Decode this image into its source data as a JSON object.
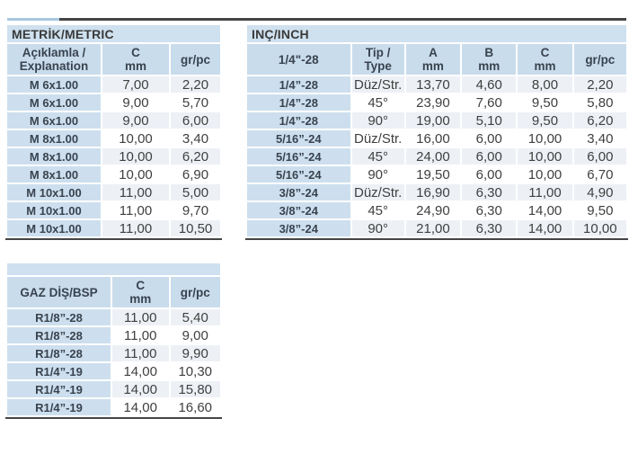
{
  "colors": {
    "title": "#cfe1ef",
    "head": "#c9dcec",
    "label": "#cddfee",
    "alt": "#edf1f6",
    "dark": "#454545",
    "ruleblue": "#a9c6e0",
    "text": "#3f3f3f",
    "headtext": "#39434f"
  },
  "tables": {
    "metric": {
      "title": "METRİK/METRIC",
      "headers": [
        [
          "Açıklamla /",
          "Explanation"
        ],
        [
          "C",
          "mm"
        ],
        [
          "gr/pc"
        ]
      ],
      "rows": [
        [
          "M 6x1.00",
          "7,00",
          "2,20"
        ],
        [
          "M 6x1.00",
          "9,00",
          "5,70"
        ],
        [
          "M 6x1.00",
          "9,00",
          "6,00"
        ],
        [
          "M 8x1.00",
          "10,00",
          "3,40"
        ],
        [
          "M 8x1.00",
          "10,00",
          "6,20"
        ],
        [
          "M 8x1.00",
          "10,00",
          "6,90"
        ],
        [
          "M 10x1.00",
          "11,00",
          "5,00"
        ],
        [
          "M 10x1.00",
          "11,00",
          "9,70"
        ],
        [
          "M 10x1.00",
          "11,00",
          "10,50"
        ]
      ]
    },
    "inch": {
      "title": "INÇ/INCH",
      "headers": [
        [
          "1/4\"-28"
        ],
        [
          "Tip /",
          "Type"
        ],
        [
          "A",
          "mm"
        ],
        [
          "B",
          "mm"
        ],
        [
          "C",
          "mm"
        ],
        [
          "gr/pc"
        ]
      ],
      "rows": [
        [
          "1/4”-28",
          "Düz/Str.",
          "13,70",
          "4,60",
          "8,00",
          "2,20"
        ],
        [
          "1/4”-28",
          "45°",
          "23,90",
          "7,60",
          "9,50",
          "5,80"
        ],
        [
          "1/4”-28",
          "90°",
          "19,00",
          "5,10",
          "9,50",
          "6,20"
        ],
        [
          "5/16”-24",
          "Düz/Str.",
          "16,00",
          "6,00",
          "10,00",
          "3,40"
        ],
        [
          "5/16”-24",
          "45°",
          "24,00",
          "6,00",
          "10,00",
          "6,00"
        ],
        [
          "5/16”-24",
          "90°",
          "19,50",
          "6,00",
          "10,00",
          "6,70"
        ],
        [
          "3/8”-24",
          "Düz/Str.",
          "16,90",
          "6,30",
          "11,00",
          "4,90"
        ],
        [
          "3/8”-24",
          "45°",
          "24,90",
          "6,30",
          "14,00",
          "9,50"
        ],
        [
          "3/8”-24",
          "90°",
          "21,00",
          "6,30",
          "14,00",
          "10,00"
        ]
      ]
    },
    "bsp": {
      "title": "",
      "headers": [
        [
          "GAZ DİŞ/BSP"
        ],
        [
          "C",
          "mm"
        ],
        [
          "gr/pc"
        ]
      ],
      "rows": [
        [
          "R1/8”-28",
          "11,00",
          "5,40"
        ],
        [
          "R1/8”-28",
          "11,00",
          "9,00"
        ],
        [
          "R1/8”-28",
          "11,00",
          "9,90"
        ],
        [
          "R1/4”-19",
          "14,00",
          "10,30"
        ],
        [
          "R1/4”-19",
          "14,00",
          "15,80"
        ],
        [
          "R1/4”-19",
          "14,00",
          "16,60"
        ]
      ]
    }
  }
}
